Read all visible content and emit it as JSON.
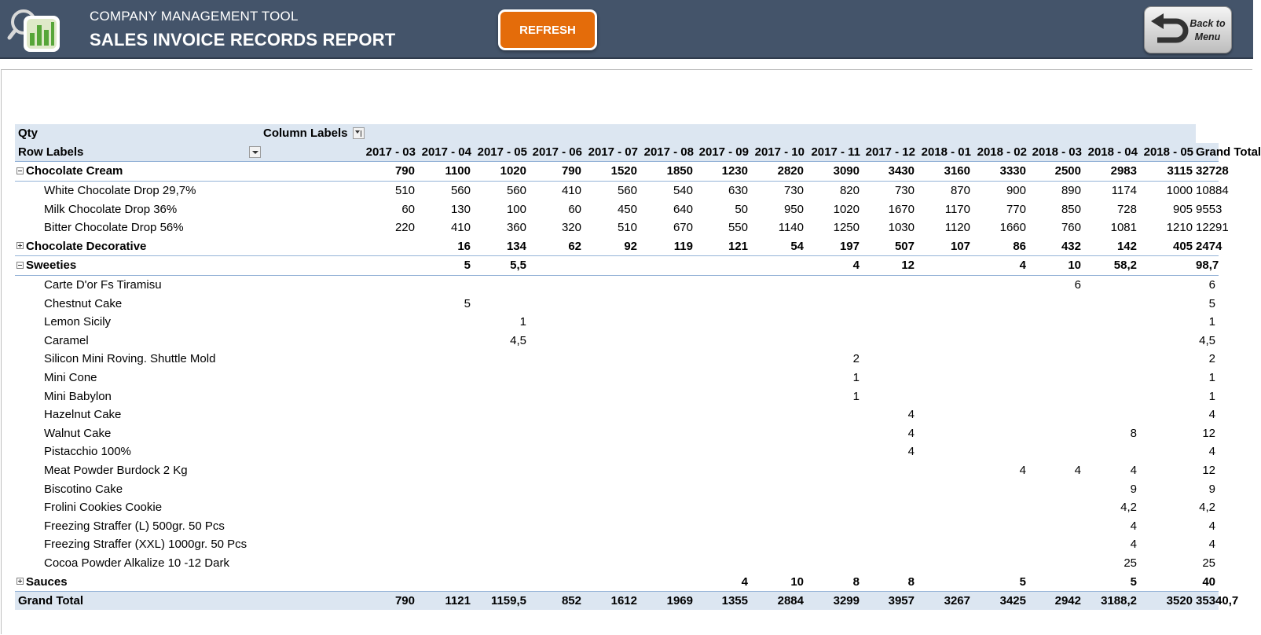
{
  "header": {
    "subtitle": "COMPANY MANAGEMENT TOOL",
    "title": "SALES INVOICE RECORDS REPORT",
    "refresh_label": "REFRESH",
    "back_label_line1": "Back to",
    "back_label_line2": "Menu",
    "bar_color": "#44546a",
    "accent_color": "#e46c0a"
  },
  "pivot": {
    "values_label": "Qty",
    "column_labels": "Column Labels",
    "row_labels": "Row Labels",
    "columns": [
      "2017 - 03",
      "2017 - 04",
      "2017 - 05",
      "2017 - 06",
      "2017 - 07",
      "2017 - 08",
      "2017 - 09",
      "2017 - 10",
      "2017 - 11",
      "2017 - 12",
      "2018 - 01",
      "2018 - 02",
      "2018 - 03",
      "2018 - 04",
      "2018 - 05",
      "Grand Total"
    ],
    "rows": [
      {
        "type": "cat",
        "toggle": "minus",
        "label": "Chocolate Cream",
        "values": [
          "790",
          "1100",
          "1020",
          "790",
          "1520",
          "1850",
          "1230",
          "2820",
          "3090",
          "3430",
          "3160",
          "3330",
          "2500",
          "2983",
          "3115",
          "32728"
        ]
      },
      {
        "type": "item",
        "label": "White Chocolate Drop 29,7%",
        "values": [
          "510",
          "560",
          "560",
          "410",
          "560",
          "540",
          "630",
          "730",
          "820",
          "730",
          "870",
          "900",
          "890",
          "1174",
          "1000",
          "10884"
        ]
      },
      {
        "type": "item",
        "label": "Milk Chocolate Drop 36%",
        "values": [
          "60",
          "130",
          "100",
          "60",
          "450",
          "640",
          "50",
          "950",
          "1020",
          "1670",
          "1170",
          "770",
          "850",
          "728",
          "905",
          "9553"
        ]
      },
      {
        "type": "item",
        "label": "Bitter Chocolate Drop 56%",
        "values": [
          "220",
          "410",
          "360",
          "320",
          "510",
          "670",
          "550",
          "1140",
          "1250",
          "1030",
          "1120",
          "1660",
          "760",
          "1081",
          "1210",
          "12291"
        ]
      },
      {
        "type": "cat",
        "toggle": "plus",
        "label": "Chocolate Decorative",
        "values": [
          "",
          "16",
          "134",
          "62",
          "92",
          "119",
          "121",
          "54",
          "197",
          "507",
          "107",
          "86",
          "432",
          "142",
          "405",
          "2474"
        ]
      },
      {
        "type": "cat",
        "toggle": "minus",
        "label": "Sweeties",
        "values": [
          "",
          "5",
          "5,5",
          "",
          "",
          "",
          "",
          "",
          "4",
          "12",
          "",
          "4",
          "10",
          "58,2",
          "",
          "98,7"
        ]
      },
      {
        "type": "item",
        "label": "Carte D'or Fs Tiramisu",
        "values": [
          "",
          "",
          "",
          "",
          "",
          "",
          "",
          "",
          "",
          "",
          "",
          "",
          "6",
          "",
          "",
          "6"
        ]
      },
      {
        "type": "item",
        "label": "Chestnut Cake",
        "values": [
          "",
          "5",
          "",
          "",
          "",
          "",
          "",
          "",
          "",
          "",
          "",
          "",
          "",
          "",
          "",
          "5"
        ]
      },
      {
        "type": "item",
        "label": "Lemon Sicily",
        "values": [
          "",
          "",
          "1",
          "",
          "",
          "",
          "",
          "",
          "",
          "",
          "",
          "",
          "",
          "",
          "",
          "1"
        ]
      },
      {
        "type": "item",
        "label": "Caramel",
        "values": [
          "",
          "",
          "4,5",
          "",
          "",
          "",
          "",
          "",
          "",
          "",
          "",
          "",
          "",
          "",
          "",
          "4,5"
        ]
      },
      {
        "type": "item",
        "label": "Silicon Mini Roving. Shuttle Mold",
        "values": [
          "",
          "",
          "",
          "",
          "",
          "",
          "",
          "",
          "2",
          "",
          "",
          "",
          "",
          "",
          "",
          "2"
        ]
      },
      {
        "type": "item",
        "label": "Mini Cone",
        "values": [
          "",
          "",
          "",
          "",
          "",
          "",
          "",
          "",
          "1",
          "",
          "",
          "",
          "",
          "",
          "",
          "1"
        ]
      },
      {
        "type": "item",
        "label": "Mini Babylon",
        "values": [
          "",
          "",
          "",
          "",
          "",
          "",
          "",
          "",
          "1",
          "",
          "",
          "",
          "",
          "",
          "",
          "1"
        ]
      },
      {
        "type": "item",
        "label": "Hazelnut Cake",
        "values": [
          "",
          "",
          "",
          "",
          "",
          "",
          "",
          "",
          "",
          "4",
          "",
          "",
          "",
          "",
          "",
          "4"
        ]
      },
      {
        "type": "item",
        "label": "Walnut Cake",
        "values": [
          "",
          "",
          "",
          "",
          "",
          "",
          "",
          "",
          "",
          "4",
          "",
          "",
          "",
          "8",
          "",
          "12"
        ]
      },
      {
        "type": "item",
        "label": "Pistacchio 100%",
        "values": [
          "",
          "",
          "",
          "",
          "",
          "",
          "",
          "",
          "",
          "4",
          "",
          "",
          "",
          "",
          "",
          "4"
        ]
      },
      {
        "type": "item",
        "label": "Meat Powder Burdock 2 Kg",
        "values": [
          "",
          "",
          "",
          "",
          "",
          "",
          "",
          "",
          "",
          "",
          "",
          "4",
          "4",
          "4",
          "",
          "12"
        ]
      },
      {
        "type": "item",
        "label": "Biscotino Cake",
        "values": [
          "",
          "",
          "",
          "",
          "",
          "",
          "",
          "",
          "",
          "",
          "",
          "",
          "",
          "9",
          "",
          "9"
        ]
      },
      {
        "type": "item",
        "label": "Frolini Cookies Cookie",
        "values": [
          "",
          "",
          "",
          "",
          "",
          "",
          "",
          "",
          "",
          "",
          "",
          "",
          "",
          "4,2",
          "",
          "4,2"
        ]
      },
      {
        "type": "item",
        "label": "Freezing Straffer (L) 500gr. 50 Pcs",
        "values": [
          "",
          "",
          "",
          "",
          "",
          "",
          "",
          "",
          "",
          "",
          "",
          "",
          "",
          "4",
          "",
          "4"
        ]
      },
      {
        "type": "item",
        "label": "Freezing Straffer (XXL) 1000gr. 50 Pcs",
        "values": [
          "",
          "",
          "",
          "",
          "",
          "",
          "",
          "",
          "",
          "",
          "",
          "",
          "",
          "4",
          "",
          "4"
        ]
      },
      {
        "type": "item",
        "label": "Cocoa Powder Alkalize 10 -12 Dark",
        "values": [
          "",
          "",
          "",
          "",
          "",
          "",
          "",
          "",
          "",
          "",
          "",
          "",
          "",
          "25",
          "",
          "25"
        ]
      },
      {
        "type": "cat",
        "toggle": "plus",
        "label": "Sauces",
        "values": [
          "",
          "",
          "",
          "",
          "",
          "",
          "4",
          "10",
          "8",
          "8",
          "",
          "5",
          "",
          "5",
          "",
          "40"
        ]
      },
      {
        "type": "gt",
        "label": "Grand Total",
        "values": [
          "790",
          "1121",
          "1159,5",
          "852",
          "1612",
          "1969",
          "1355",
          "2884",
          "3299",
          "3957",
          "3267",
          "3425",
          "2942",
          "3188,2",
          "3520",
          "35340,7"
        ]
      }
    ]
  }
}
